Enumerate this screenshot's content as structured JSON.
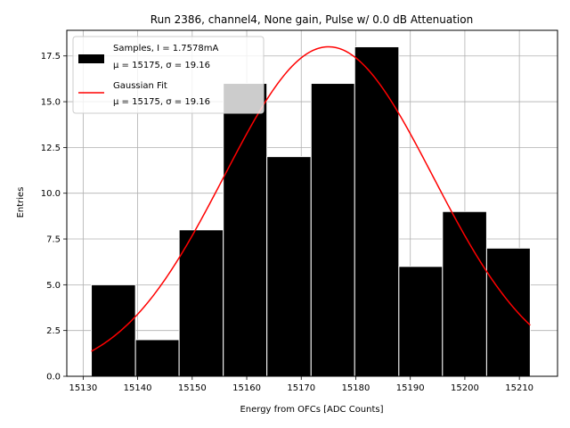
{
  "chart_data": {
    "type": "bar",
    "title": "Run 2386, channel4, None gain, Pulse w/ 0.0 dB Attenuation",
    "xlabel": "Energy from OFCs [ADC Counts]",
    "ylabel": "Entries",
    "xlim": [
      15127,
      15217
    ],
    "ylim": [
      0,
      18.9
    ],
    "x_ticks": [
      15130,
      15140,
      15150,
      15160,
      15170,
      15180,
      15190,
      15200,
      15210
    ],
    "y_ticks": [
      0.0,
      2.5,
      5.0,
      7.5,
      10.0,
      12.5,
      15.0,
      17.5
    ],
    "x_tick_labels": [
      "15130",
      "15140",
      "15150",
      "15160",
      "15170",
      "15180",
      "15190",
      "15200",
      "15210"
    ],
    "y_tick_labels": [
      "0.0",
      "2.5",
      "5.0",
      "7.5",
      "10.0",
      "12.5",
      "15.0",
      "17.5"
    ],
    "grid": true,
    "legend_position": "top-left",
    "histogram": {
      "bin_edges": [
        15131.5,
        15139.6,
        15147.6,
        15155.7,
        15163.7,
        15171.8,
        15179.8,
        15187.9,
        15195.9,
        15204.0,
        15212.0
      ],
      "counts": [
        5,
        2,
        8,
        16,
        12,
        16,
        18,
        6,
        9,
        7
      ],
      "color": "#000000",
      "edge_color": "#ffffff"
    },
    "fit": {
      "type": "gaussian",
      "amplitude": 18.0,
      "mu": 15175,
      "sigma": 19.16,
      "x_range": [
        15131.5,
        15212.0
      ],
      "color": "#ff0000"
    },
    "legend": [
      {
        "line1": "Samples, I = 1.7578mA",
        "line2": "μ = 15175, σ = 19.16",
        "color": "#000000",
        "kind": "patch"
      },
      {
        "line1": "Gaussian Fit",
        "line2": "μ = 15175, σ = 19.16",
        "color": "#ff0000",
        "kind": "line"
      }
    ]
  }
}
